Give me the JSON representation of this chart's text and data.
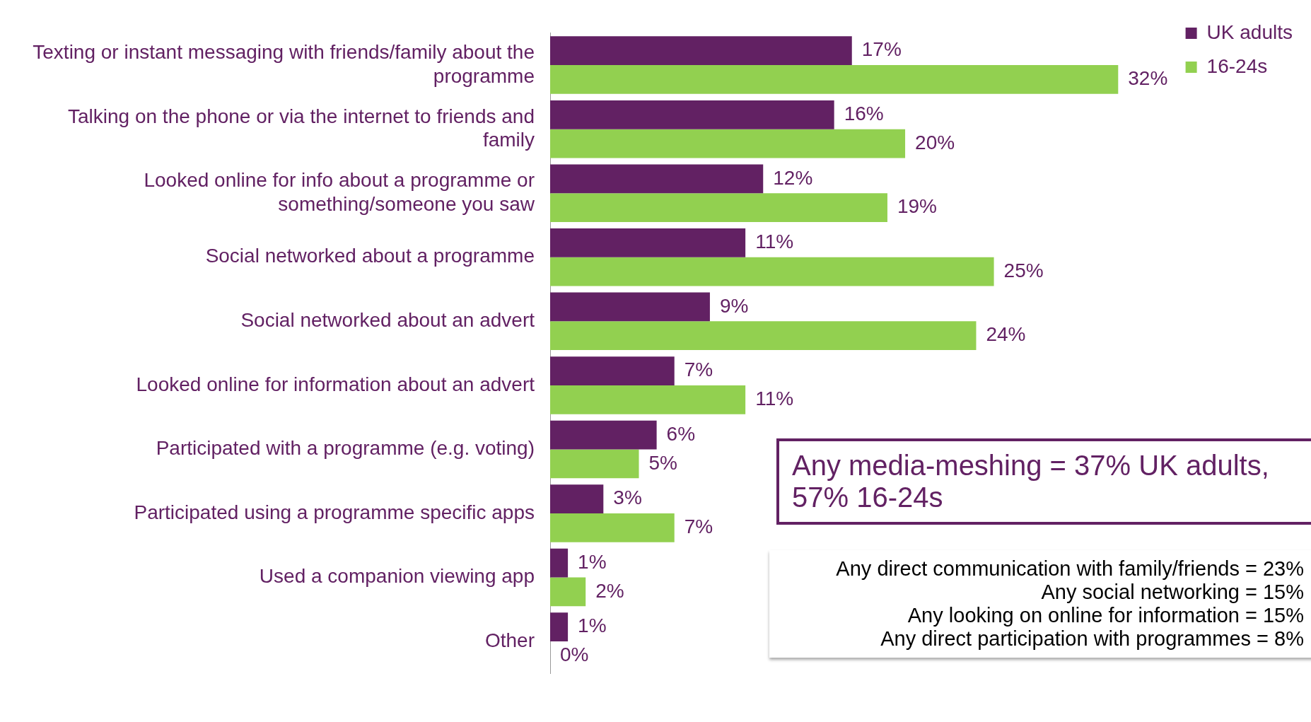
{
  "chart_data": {
    "type": "bar",
    "orientation": "horizontal",
    "categories": [
      "Texting or instant messaging with friends/family about the programme",
      "Talking on the phone or via the internet to friends and family",
      "Looked online for info about a programme or something/someone you saw",
      "Social networked about a programme",
      "Social networked about an advert",
      "Looked online for information about an advert",
      "Participated with a programme (e.g. voting)",
      "Participated using a programme specific apps",
      "Used a companion viewing app",
      "Other"
    ],
    "series": [
      {
        "name": "UK adults",
        "color": "#622163",
        "values": [
          17,
          16,
          12,
          11,
          9,
          7,
          6,
          3,
          1,
          1
        ],
        "value_labels": [
          "17%",
          "16%",
          "12%",
          "11%",
          "9%",
          "7%",
          "6%",
          "3%",
          "1%",
          "1%"
        ]
      },
      {
        "name": "16-24s",
        "color": "#92d050",
        "values": [
          32,
          20,
          19,
          25,
          24,
          11,
          5,
          7,
          2,
          0
        ],
        "value_labels": [
          "32%",
          "20%",
          "19%",
          "25%",
          "24%",
          "11%",
          "5%",
          "7%",
          "2%",
          "0%"
        ]
      }
    ],
    "legend": "right",
    "grid": false,
    "annotations": [
      "Any media-meshing = 37% UK adults, 57% 16-24s",
      "Any direct communication with family/friends = 23%",
      "Any social networking = 15%",
      "Any looking on online for information = 15%",
      "Any direct participation with programmes = 8%"
    ]
  }
}
